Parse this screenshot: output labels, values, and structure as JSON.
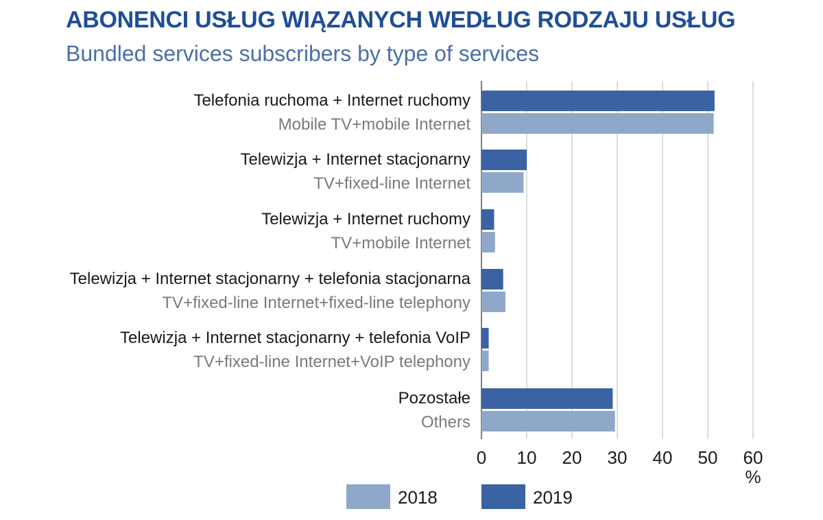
{
  "title": "ABONENCI USŁUG WIĄZANYCH WEDŁUG RODZAJU USŁUG",
  "subtitle": "Bundled services subscribers by type of services",
  "colors": {
    "title": "#1f4e97",
    "subtitle": "#4a6fa9",
    "s2018": "#8fa8c9",
    "s2019": "#3b62a3",
    "grid": "#b8b8b8"
  },
  "chart_data": {
    "type": "bar",
    "orientation": "horizontal",
    "categories": [
      {
        "pl": "Telefonia ruchoma + Internet ruchomy",
        "en": "Mobile TV+mobile Internet"
      },
      {
        "pl": "Telewizja + Internet stacjonarny",
        "en": "TV+fixed-line Internet"
      },
      {
        "pl": "Telewizja + Internet ruchomy",
        "en": "TV+mobile Internet"
      },
      {
        "pl": "Telewizja + Internet stacjonarny + telefonia stacjonarna",
        "en": "TV+fixed-line Internet+fixed-line telephony"
      },
      {
        "pl": "Telewizja + Internet stacjonarny + telefonia VoIP",
        "en": "TV+fixed-line Internet+VoIP telephony"
      },
      {
        "pl": "Pozostałe",
        "en": "Others"
      }
    ],
    "series": [
      {
        "name": "2019",
        "values": [
          51.5,
          10.0,
          2.8,
          4.8,
          1.6,
          29.0
        ]
      },
      {
        "name": "2018",
        "values": [
          51.3,
          9.3,
          3.0,
          5.3,
          1.6,
          29.5
        ]
      }
    ],
    "xlim": [
      0,
      60
    ],
    "xticks": [
      "0",
      "10",
      "20",
      "30",
      "40",
      "50",
      "60"
    ],
    "xunit": "%",
    "grid": true,
    "legend": {
      "position": "bottom",
      "items": [
        "2018",
        "2019"
      ]
    }
  }
}
